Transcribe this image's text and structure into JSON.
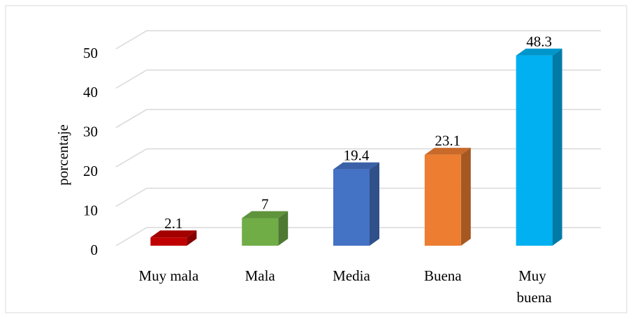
{
  "chart_data": {
    "type": "bar",
    "y_label": "porcentaje",
    "categories": [
      "Muy mala",
      "Mala",
      "Media",
      "Buena",
      "Muy buena"
    ],
    "values": [
      2.1,
      7,
      19.4,
      23.1,
      48.3
    ],
    "colors": [
      "#c00000",
      "#70ad47",
      "#4472c4",
      "#ed7d31",
      "#00b0f0"
    ],
    "ylim": [
      0,
      50
    ],
    "yticks": [
      0,
      10,
      20,
      30,
      40,
      50
    ],
    "grid": true
  }
}
